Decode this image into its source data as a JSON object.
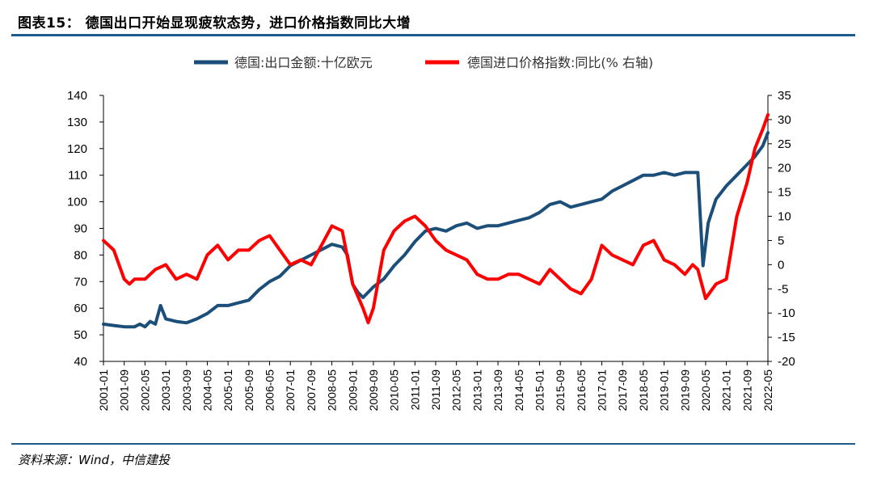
{
  "title": "图表15： 德国出口开始显现疲软态势，进口价格指数同比大增",
  "source": "资料来源：Wind，中信建投",
  "chart_data": {
    "type": "line",
    "legend_position": "top",
    "grid": false,
    "x_ticks": [
      "2001-01",
      "2001-09",
      "2002-05",
      "2003-01",
      "2003-09",
      "2004-05",
      "2005-01",
      "2005-09",
      "2006-05",
      "2007-01",
      "2007-09",
      "2008-05",
      "2009-01",
      "2009-09",
      "2010-05",
      "2011-01",
      "2011-09",
      "2012-05",
      "2013-01",
      "2013-09",
      "2014-05",
      "2015-01",
      "2015-09",
      "2016-05",
      "2017-01",
      "2017-09",
      "2018-05",
      "2019-01",
      "2019-09",
      "2020-05",
      "2021-01",
      "2021-09",
      "2022-05"
    ],
    "y_left": {
      "min": 40,
      "max": 140,
      "ticks": [
        40,
        50,
        60,
        70,
        80,
        90,
        100,
        110,
        120,
        130,
        140
      ]
    },
    "y_right": {
      "min": -20,
      "max": 35,
      "ticks": [
        -20,
        -15,
        -10,
        -5,
        0,
        5,
        10,
        15,
        20,
        25,
        30,
        35
      ]
    },
    "series": [
      {
        "name": "德国:出口金额:十亿欧元",
        "color": "#1b4f7a",
        "axis": "left",
        "points": [
          [
            "2001-01",
            54
          ],
          [
            "2001-05",
            53.5
          ],
          [
            "2001-09",
            53
          ],
          [
            "2002-01",
            53
          ],
          [
            "2002-03",
            54
          ],
          [
            "2002-05",
            53
          ],
          [
            "2002-07",
            55
          ],
          [
            "2002-09",
            54
          ],
          [
            "2002-11",
            61
          ],
          [
            "2003-01",
            56
          ],
          [
            "2003-05",
            55
          ],
          [
            "2003-09",
            54.5
          ],
          [
            "2004-01",
            56
          ],
          [
            "2004-05",
            58
          ],
          [
            "2004-09",
            61
          ],
          [
            "2005-01",
            61
          ],
          [
            "2005-05",
            62
          ],
          [
            "2005-09",
            63
          ],
          [
            "2006-01",
            67
          ],
          [
            "2006-05",
            70
          ],
          [
            "2006-09",
            72
          ],
          [
            "2007-01",
            76
          ],
          [
            "2007-05",
            78
          ],
          [
            "2007-09",
            80
          ],
          [
            "2008-01",
            82
          ],
          [
            "2008-05",
            84
          ],
          [
            "2008-09",
            83
          ],
          [
            "2008-11",
            80
          ],
          [
            "2009-01",
            69
          ],
          [
            "2009-03",
            66
          ],
          [
            "2009-05",
            64
          ],
          [
            "2009-07",
            66
          ],
          [
            "2009-09",
            68
          ],
          [
            "2010-01",
            71
          ],
          [
            "2010-05",
            76
          ],
          [
            "2010-09",
            80
          ],
          [
            "2011-01",
            85
          ],
          [
            "2011-05",
            89
          ],
          [
            "2011-09",
            90
          ],
          [
            "2012-01",
            89
          ],
          [
            "2012-05",
            91
          ],
          [
            "2012-09",
            92
          ],
          [
            "2013-01",
            90
          ],
          [
            "2013-05",
            91
          ],
          [
            "2013-09",
            91
          ],
          [
            "2014-01",
            92
          ],
          [
            "2014-05",
            93
          ],
          [
            "2014-09",
            94
          ],
          [
            "2015-01",
            96
          ],
          [
            "2015-05",
            99
          ],
          [
            "2015-09",
            100
          ],
          [
            "2016-01",
            98
          ],
          [
            "2016-05",
            99
          ],
          [
            "2016-09",
            100
          ],
          [
            "2017-01",
            101
          ],
          [
            "2017-05",
            104
          ],
          [
            "2017-09",
            106
          ],
          [
            "2018-01",
            108
          ],
          [
            "2018-05",
            110
          ],
          [
            "2018-09",
            110
          ],
          [
            "2019-01",
            111
          ],
          [
            "2019-05",
            110
          ],
          [
            "2019-09",
            111
          ],
          [
            "2019-12",
            111
          ],
          [
            "2020-02",
            111
          ],
          [
            "2020-04",
            76
          ],
          [
            "2020-06",
            92
          ],
          [
            "2020-09",
            101
          ],
          [
            "2021-01",
            106
          ],
          [
            "2021-05",
            110
          ],
          [
            "2021-09",
            114
          ],
          [
            "2021-12",
            117
          ],
          [
            "2022-03",
            121
          ],
          [
            "2022-05",
            126
          ]
        ]
      },
      {
        "name": "德国进口价格指数:同比(% 右轴)",
        "color": "#ff0000",
        "axis": "right",
        "points": [
          [
            "2001-01",
            5
          ],
          [
            "2001-05",
            3
          ],
          [
            "2001-09",
            -3
          ],
          [
            "2001-11",
            -4
          ],
          [
            "2002-01",
            -3
          ],
          [
            "2002-05",
            -3
          ],
          [
            "2002-09",
            -1
          ],
          [
            "2003-01",
            0
          ],
          [
            "2003-05",
            -3
          ],
          [
            "2003-09",
            -2
          ],
          [
            "2004-01",
            -3
          ],
          [
            "2004-05",
            2
          ],
          [
            "2004-09",
            4
          ],
          [
            "2005-01",
            1
          ],
          [
            "2005-05",
            3
          ],
          [
            "2005-09",
            3
          ],
          [
            "2006-01",
            5
          ],
          [
            "2006-05",
            6
          ],
          [
            "2006-09",
            3
          ],
          [
            "2007-01",
            0
          ],
          [
            "2007-05",
            1
          ],
          [
            "2007-09",
            0
          ],
          [
            "2008-01",
            4
          ],
          [
            "2008-05",
            8
          ],
          [
            "2008-09",
            7
          ],
          [
            "2009-01",
            -4
          ],
          [
            "2009-05",
            -9
          ],
          [
            "2009-07",
            -12
          ],
          [
            "2009-09",
            -9
          ],
          [
            "2010-01",
            3
          ],
          [
            "2010-05",
            7
          ],
          [
            "2010-09",
            9
          ],
          [
            "2011-01",
            10
          ],
          [
            "2011-05",
            8
          ],
          [
            "2011-09",
            5
          ],
          [
            "2012-01",
            3
          ],
          [
            "2012-05",
            2
          ],
          [
            "2012-09",
            1
          ],
          [
            "2013-01",
            -2
          ],
          [
            "2013-05",
            -3
          ],
          [
            "2013-09",
            -3
          ],
          [
            "2014-01",
            -2
          ],
          [
            "2014-05",
            -2
          ],
          [
            "2014-09",
            -3
          ],
          [
            "2015-01",
            -4
          ],
          [
            "2015-05",
            -1
          ],
          [
            "2015-09",
            -3
          ],
          [
            "2016-01",
            -5
          ],
          [
            "2016-05",
            -6
          ],
          [
            "2016-09",
            -3
          ],
          [
            "2017-01",
            4
          ],
          [
            "2017-05",
            2
          ],
          [
            "2017-09",
            1
          ],
          [
            "2018-01",
            0
          ],
          [
            "2018-05",
            4
          ],
          [
            "2018-09",
            5
          ],
          [
            "2019-01",
            1
          ],
          [
            "2019-05",
            0
          ],
          [
            "2019-09",
            -2
          ],
          [
            "2019-12",
            0
          ],
          [
            "2020-02",
            -1
          ],
          [
            "2020-05",
            -7
          ],
          [
            "2020-09",
            -4
          ],
          [
            "2021-01",
            -3
          ],
          [
            "2021-05",
            10
          ],
          [
            "2021-09",
            17
          ],
          [
            "2021-12",
            24
          ],
          [
            "2022-03",
            28
          ],
          [
            "2022-05",
            31
          ]
        ]
      }
    ]
  }
}
